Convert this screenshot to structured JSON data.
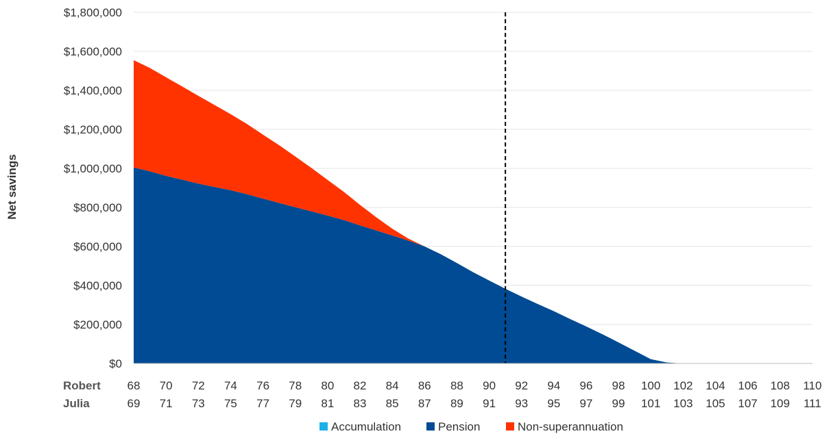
{
  "chart_data": {
    "type": "area",
    "stacked": true,
    "ylabel": "Net savings",
    "ylim": [
      0,
      1800000
    ],
    "y_ticks": [
      "$0",
      "$200,000",
      "$400,000",
      "$600,000",
      "$800,000",
      "$1,000,000",
      "$1,200,000",
      "$1,400,000",
      "$1,600,000",
      "$1,800,000"
    ],
    "y_tick_values": [
      0,
      200000,
      400000,
      600000,
      800000,
      1000000,
      1200000,
      1400000,
      1600000,
      1800000
    ],
    "grid": true,
    "x_rows": [
      {
        "label": "Robert",
        "values": [
          "68",
          "70",
          "72",
          "74",
          "76",
          "78",
          "80",
          "82",
          "84",
          "86",
          "88",
          "90",
          "92",
          "94",
          "96",
          "98",
          "100",
          "102",
          "104",
          "106",
          "108",
          "110"
        ]
      },
      {
        "label": "Julia",
        "values": [
          "69",
          "71",
          "73",
          "75",
          "77",
          "79",
          "81",
          "83",
          "85",
          "87",
          "89",
          "91",
          "93",
          "95",
          "97",
          "99",
          "101",
          "103",
          "105",
          "107",
          "109",
          "111"
        ]
      }
    ],
    "x": [
      68,
      69,
      70,
      71,
      72,
      73,
      74,
      75,
      76,
      77,
      78,
      79,
      80,
      81,
      82,
      83,
      84,
      85,
      86,
      87,
      88,
      89,
      90,
      91,
      92,
      93,
      94,
      95,
      96,
      97,
      98,
      99,
      100,
      101,
      102,
      103,
      104,
      105,
      106,
      107,
      108,
      109,
      110
    ],
    "series": [
      {
        "name": "Accumulation",
        "color": "#1ab0e8",
        "values": [
          0,
          0,
          0,
          0,
          0,
          0,
          0,
          0,
          0,
          0,
          0,
          0,
          0,
          0,
          0,
          0,
          0,
          0,
          0,
          0,
          0,
          0,
          0,
          0,
          0,
          0,
          0,
          0,
          0,
          0,
          0,
          0,
          0,
          0,
          0,
          0,
          0,
          0,
          0,
          0,
          0,
          0,
          0
        ]
      },
      {
        "name": "Pension",
        "color": "#004b93",
        "values": [
          1005000,
          985000,
          962000,
          942000,
          922000,
          905000,
          888000,
          868000,
          845000,
          823000,
          801000,
          780000,
          758000,
          735000,
          708000,
          682000,
          656000,
          630000,
          600000,
          560000,
          515000,
          468000,
          425000,
          383000,
          343000,
          305000,
          268000,
          228000,
          190000,
          150000,
          108000,
          65000,
          22000,
          5000,
          0,
          0,
          0,
          0,
          0,
          0,
          0,
          0,
          0
        ]
      },
      {
        "name": "Non-superannuation",
        "color": "#ff3300",
        "values": [
          550000,
          530000,
          505000,
          478000,
          450000,
          420000,
          390000,
          360000,
          328000,
          296000,
          260000,
          222000,
          183000,
          145000,
          105000,
          68000,
          35000,
          10000,
          0,
          0,
          0,
          0,
          0,
          0,
          0,
          0,
          0,
          0,
          0,
          0,
          0,
          0,
          0,
          0,
          0,
          0,
          0,
          0,
          0,
          0,
          0,
          0,
          0
        ]
      }
    ],
    "reference_line": {
      "x": 91,
      "style": "dashed",
      "color": "#000000"
    },
    "legend": {
      "position": "bottom",
      "entries": [
        "Accumulation",
        "Pension",
        "Non-superannuation"
      ]
    }
  }
}
